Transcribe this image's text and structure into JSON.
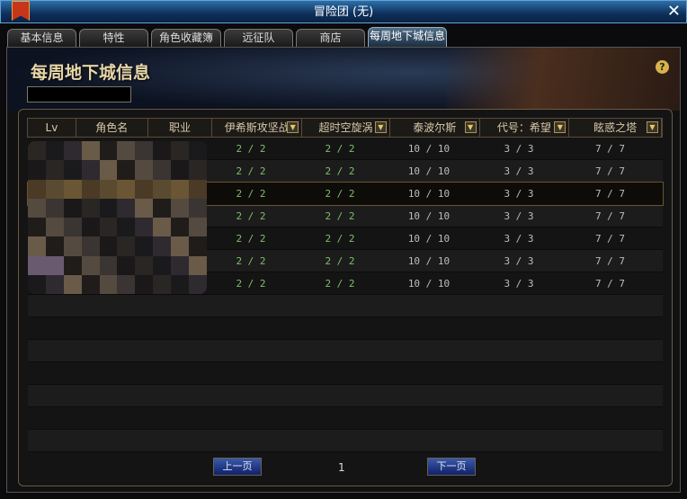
{
  "window": {
    "title": "冒险团 (无)",
    "close": "✕"
  },
  "tabs": [
    {
      "label": "基本信息"
    },
    {
      "label": "特性"
    },
    {
      "label": "角色收藏簿"
    },
    {
      "label": "远征队"
    },
    {
      "label": "商店"
    },
    {
      "label": "每周地下城信息",
      "active": true
    }
  ],
  "banner": {
    "title": "每周地下城信息",
    "help": "?"
  },
  "table": {
    "columns": [
      {
        "label": "Lv"
      },
      {
        "label": "角色名"
      },
      {
        "label": "职业"
      },
      {
        "label": "伊希斯攻坚战",
        "dropdown": true
      },
      {
        "label": "超时空旋涡",
        "dropdown": true
      },
      {
        "label": "泰波尔斯",
        "dropdown": true
      },
      {
        "label": "代号：希望",
        "dropdown": true
      },
      {
        "label": "眩惑之塔",
        "dropdown": true
      }
    ],
    "dropdown_glyph": "▼",
    "rows": [
      [
        "2 / 2",
        "2 / 2",
        "10 / 10",
        "3 / 3",
        "7 / 7"
      ],
      [
        "2 / 2",
        "2 / 2",
        "10 / 10",
        "3 / 3",
        "7 / 7"
      ],
      [
        "2 / 2",
        "2 / 2",
        "10 / 10",
        "3 / 3",
        "7 / 7"
      ],
      [
        "2 / 2",
        "2 / 2",
        "10 / 10",
        "3 / 3",
        "7 / 7"
      ],
      [
        "2 / 2",
        "2 / 2",
        "10 / 10",
        "3 / 3",
        "7 / 7"
      ],
      [
        "2 / 2",
        "2 / 2",
        "10 / 10",
        "3 / 3",
        "7 / 7"
      ],
      [
        "2 / 2",
        "2 / 2",
        "10 / 10",
        "3 / 3",
        "7 / 7"
      ]
    ],
    "selected_row": 2
  },
  "pager": {
    "prev": "上一页",
    "next": "下一页",
    "page": "1"
  },
  "colors": {
    "completed": "#7fbf6a",
    "normal": "#bdbdbd",
    "accent": "#d8b24a"
  }
}
